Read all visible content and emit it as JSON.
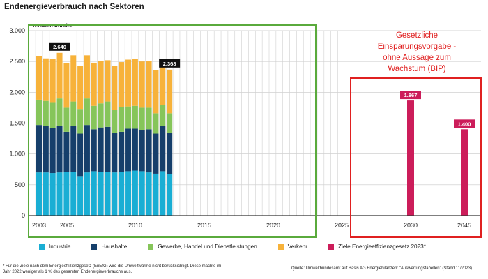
{
  "title": "Endenergieverbrauch nach Sektoren",
  "annotation_box_text": [
    "Gesetzliche",
    "Einsparungsvorgabe  -",
    "ohne Aussage zum",
    "Wachstum (BIP)"
  ],
  "footnote": "* Für die Ziele nach dem Energieeffizienzgesetz (EnEfG) wird die Umweltwärme nicht berücksichtigt. Diese machte im Jahr 2022 weniger als 1 % des gesamten Endenergieverbrauchs aus.",
  "source": "Quelle: Umweltbundesamt auf Basis AG Energiebilanzen: \"Auswertungstabellen\" (Stand 11/2023)",
  "colors": {
    "industrie": "#1aaed4",
    "haushalte": "#163f6b",
    "ghd": "#86c55a",
    "verkehr": "#f7b23a",
    "ziele": "#cc1d5a",
    "green_frame": "#5aaa3c",
    "red_frame": "#e02020"
  },
  "chart_data": {
    "type": "bar",
    "stacked": true,
    "ylabel": "Terawattstunden",
    "ylim": [
      0,
      3000
    ],
    "yticks": [
      0,
      500,
      1000,
      1500,
      2000,
      2500,
      3000
    ],
    "ytick_labels": [
      "0",
      "500",
      "1.000",
      "1.500",
      "2.000",
      "2.500",
      "3.000"
    ],
    "x_tick_labels": [
      "2003",
      "2005",
      "2010",
      "2015",
      "2020",
      "2025",
      "2030",
      "...",
      "2045"
    ],
    "grid": true,
    "legend_position": "bottom",
    "years": [
      2003,
      2004,
      2005,
      2006,
      2007,
      2008,
      2009,
      2010,
      2011,
      2012,
      2013,
      2014,
      2015,
      2016,
      2017,
      2018,
      2019,
      2020,
      2021,
      2022
    ],
    "series": [
      {
        "name": "Industrie",
        "color_key": "industrie",
        "values": [
          700,
          700,
          690,
          700,
          710,
          710,
          630,
          700,
          720,
          710,
          710,
          700,
          710,
          720,
          730,
          720,
          700,
          680,
          720,
          670
        ]
      },
      {
        "name": "Haushalte",
        "color_key": "haushalte",
        "values": [
          770,
          750,
          730,
          750,
          650,
          740,
          700,
          770,
          680,
          720,
          730,
          640,
          650,
          690,
          680,
          670,
          700,
          650,
          730,
          670
        ]
      },
      {
        "name": "Gewerbe, Handel und Dienstleistungen",
        "color_key": "ghd",
        "values": [
          410,
          410,
          420,
          450,
          390,
          400,
          400,
          430,
          380,
          390,
          410,
          380,
          400,
          360,
          370,
          360,
          350,
          330,
          340,
          320
        ]
      },
      {
        "name": "Verkehr",
        "color_key": "verkehr",
        "values": [
          710,
          690,
          700,
          740,
          720,
          750,
          700,
          700,
          700,
          690,
          670,
          710,
          730,
          760,
          760,
          750,
          760,
          700,
          640,
          708
        ]
      }
    ],
    "total_labels": [
      {
        "year": 2006,
        "text": "2.640"
      },
      {
        "year": 2022,
        "text": "2.368"
      }
    ],
    "target_series": {
      "name": "Ziele Energieeffizienzgesetz 2023*",
      "color_key": "ziele",
      "points": [
        {
          "label": "2030",
          "value": 1867,
          "text": "1.867"
        },
        {
          "label": "2045",
          "value": 1400,
          "text": "1.400"
        }
      ]
    }
  }
}
